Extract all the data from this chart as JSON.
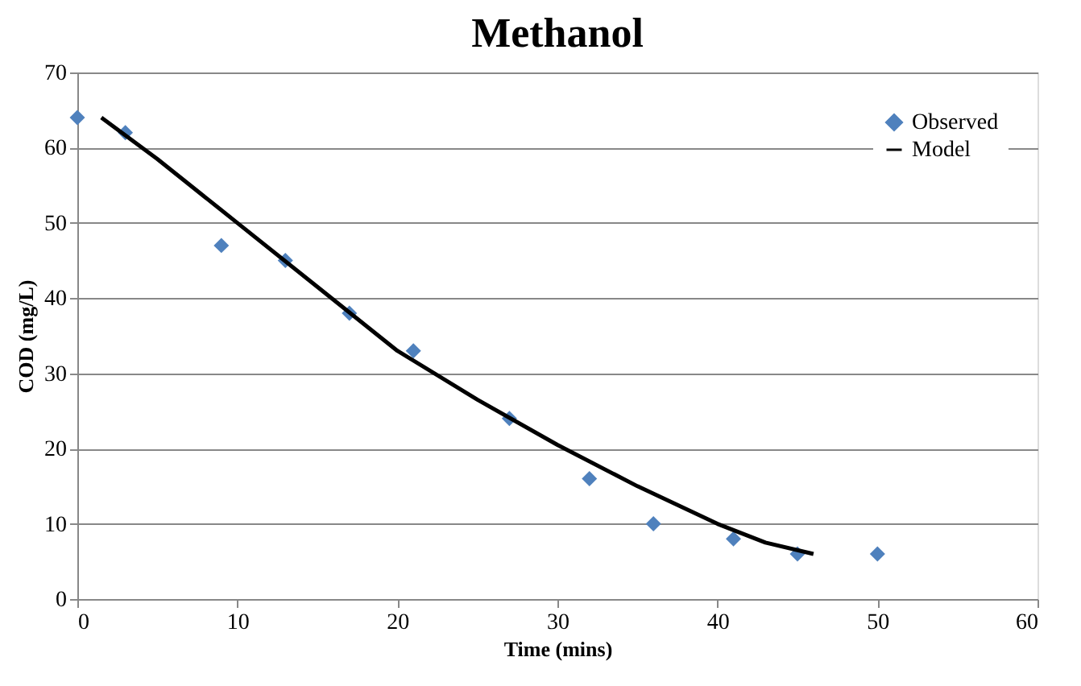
{
  "chart_data": {
    "type": "scatter",
    "title": "Methanol",
    "xlabel": "Time (mins)",
    "ylabel": "COD (mg/L)",
    "series": [
      {
        "name": "Observed",
        "color": "#4f81bd",
        "marker": "diamond",
        "x": [
          0,
          3,
          9,
          13,
          17,
          21,
          27,
          32,
          36,
          41,
          45,
          50
        ],
        "values": [
          64,
          62,
          47,
          45,
          38,
          33,
          24,
          16,
          10,
          8,
          6,
          6
        ]
      },
      {
        "name": "Model",
        "type": "line",
        "color": "#000000",
        "marker": "none",
        "line_style": "solid",
        "x": [
          1.5,
          5,
          10,
          15,
          20,
          25,
          30,
          35,
          40,
          43,
          46
        ],
        "values": [
          64,
          58.5,
          50,
          41.5,
          33,
          26.5,
          20.5,
          15,
          10,
          7.5,
          6
        ]
      }
    ],
    "xlim": [
      0,
      60
    ],
    "xticks": [
      0,
      10,
      20,
      30,
      40,
      50,
      60
    ],
    "ylim": [
      0,
      70
    ],
    "yticks": [
      0,
      10,
      20,
      30,
      40,
      50,
      60,
      70
    ],
    "grid": "y",
    "legend": "top right"
  }
}
